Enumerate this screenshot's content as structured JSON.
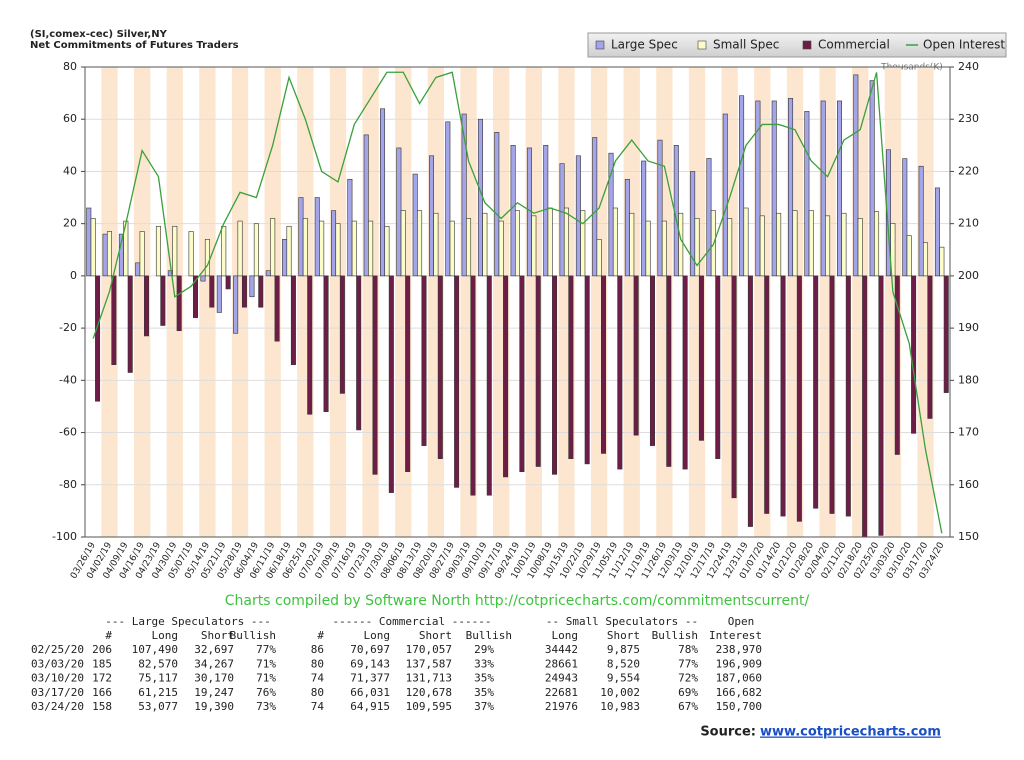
{
  "chart_data": {
    "type": "bar",
    "title": "(SI,comex-cec) Silver,NY",
    "subtitle": "Net Commitments of Futures Traders",
    "y2_label": "Thousands(K)",
    "legend": "top-right",
    "grid": true,
    "categories": [
      "03/26/19",
      "04/02/19",
      "04/09/19",
      "04/16/19",
      "04/23/19",
      "04/30/19",
      "05/07/19",
      "05/14/19",
      "05/21/19",
      "05/28/19",
      "06/04/19",
      "06/11/19",
      "06/18/19",
      "06/25/19",
      "07/02/19",
      "07/09/19",
      "07/16/19",
      "07/23/19",
      "07/30/19",
      "08/06/19",
      "08/13/19",
      "08/20/19",
      "08/27/19",
      "09/03/19",
      "09/10/19",
      "09/17/19",
      "09/24/19",
      "10/01/19",
      "10/08/19",
      "10/15/19",
      "10/22/19",
      "10/29/19",
      "11/05/19",
      "11/12/19",
      "11/19/19",
      "11/26/19",
      "12/03/19",
      "12/10/19",
      "12/17/19",
      "12/24/19",
      "12/31/19",
      "01/07/20",
      "01/14/20",
      "01/21/20",
      "01/28/20",
      "02/04/20",
      "02/11/20",
      "02/18/20",
      "02/25/20",
      "03/03/20",
      "03/10/20",
      "03/17/20",
      "03/24/20"
    ],
    "series": [
      {
        "name": "Large Spec",
        "color": "#a4a4e8",
        "values": [
          26,
          16,
          16,
          5,
          0,
          2,
          0,
          -2,
          -14,
          -22,
          -8,
          2,
          14,
          30,
          30,
          25,
          37,
          54,
          64,
          49,
          39,
          46,
          59,
          62,
          60,
          55,
          50,
          49,
          50,
          43,
          46,
          53,
          47,
          37,
          44,
          52,
          50,
          40,
          45,
          62,
          69,
          67,
          67,
          68,
          63,
          67,
          67,
          77,
          74.8,
          48.3,
          44.9,
          42.0,
          33.7
        ]
      },
      {
        "name": "Small Spec",
        "color": "#fcfcc8",
        "values": [
          22,
          17,
          21,
          17,
          19,
          19,
          17,
          14,
          19,
          21,
          20,
          22,
          19,
          22,
          21,
          20,
          21,
          21,
          19,
          25,
          25,
          24,
          21,
          22,
          24,
          21,
          25,
          23,
          26,
          26,
          25,
          14,
          26,
          24,
          21,
          21,
          24,
          22,
          25,
          22,
          26,
          23,
          24,
          25,
          25,
          23,
          24,
          22,
          24.6,
          20.1,
          15.4,
          12.7,
          11.0
        ]
      },
      {
        "name": "Commercial",
        "color": "#6e1e46",
        "values": [
          -48,
          -34,
          -37,
          -23,
          -19,
          -21,
          -16,
          -12,
          -5,
          -12,
          -12,
          -25,
          -34,
          -53,
          -52,
          -45,
          -59,
          -76,
          -83,
          -75,
          -65,
          -70,
          -81,
          -84,
          -84,
          -77,
          -75,
          -73,
          -76,
          -70,
          -72,
          -68,
          -74,
          -61,
          -65,
          -73,
          -74,
          -63,
          -70,
          -85,
          -96,
          -91,
          -92,
          -94,
          -89,
          -91,
          -92,
          -100,
          -99.4,
          -68.4,
          -60.3,
          -54.6,
          -44.7
        ]
      },
      {
        "name": "Open Interest",
        "color": "#3aa03a",
        "axis": "y2",
        "values": [
          188,
          197,
          210,
          224,
          219,
          196,
          198,
          202,
          210,
          216,
          215,
          225,
          238,
          230,
          220,
          218,
          229,
          234,
          239,
          239,
          233,
          238,
          239,
          222,
          214,
          211,
          214,
          212,
          213,
          212,
          210,
          213,
          222,
          226,
          222,
          221,
          207,
          202,
          206,
          215,
          225,
          229,
          229,
          228,
          222,
          219,
          226,
          228,
          238.97,
          196.9,
          187.1,
          166.7,
          150.7
        ]
      }
    ],
    "ylim": [
      -100,
      80
    ],
    "yticks": [
      -100,
      -80,
      -60,
      -40,
      -20,
      0,
      20,
      40,
      60,
      80
    ],
    "y2lim": [
      150,
      240
    ],
    "y2ticks": [
      150,
      160,
      170,
      180,
      190,
      200,
      210,
      220,
      230,
      240
    ]
  },
  "footer": "Charts compiled by Software North  http://cotpricecharts.com/commitmentscurrent/",
  "table": {
    "headers": [
      [
        "--- Large Speculators ---",
        "------ Commercial ------",
        "-- Small Speculators --",
        "Open"
      ],
      [
        "#",
        "Long",
        "Short",
        "Bullish",
        "#",
        "Long",
        "Short",
        "Bullish",
        "Long",
        "Short",
        "Bullish",
        "Interest"
      ]
    ],
    "rows": [
      [
        "02/25/20",
        "206",
        "107,490",
        "32,697",
        "77%",
        "86",
        "70,697",
        "170,057",
        "29%",
        "34442",
        "9,875",
        "78%",
        "238,970"
      ],
      [
        "03/03/20",
        "185",
        "82,570",
        "34,267",
        "71%",
        "80",
        "69,143",
        "137,587",
        "33%",
        "28661",
        "8,520",
        "77%",
        "196,909"
      ],
      [
        "03/10/20",
        "172",
        "75,117",
        "30,170",
        "71%",
        "74",
        "71,377",
        "131,713",
        "35%",
        "24943",
        "9,554",
        "72%",
        "187,060"
      ],
      [
        "03/17/20",
        "166",
        "61,215",
        "19,247",
        "76%",
        "80",
        "66,031",
        "120,678",
        "35%",
        "22681",
        "10,002",
        "69%",
        "166,682"
      ],
      [
        "03/24/20",
        "158",
        "53,077",
        "19,390",
        "73%",
        "74",
        "64,915",
        "109,595",
        "37%",
        "21976",
        "10,983",
        "67%",
        "150,700"
      ]
    ]
  },
  "source": {
    "label": "Source:",
    "link": "www.cotpricecharts.com"
  }
}
